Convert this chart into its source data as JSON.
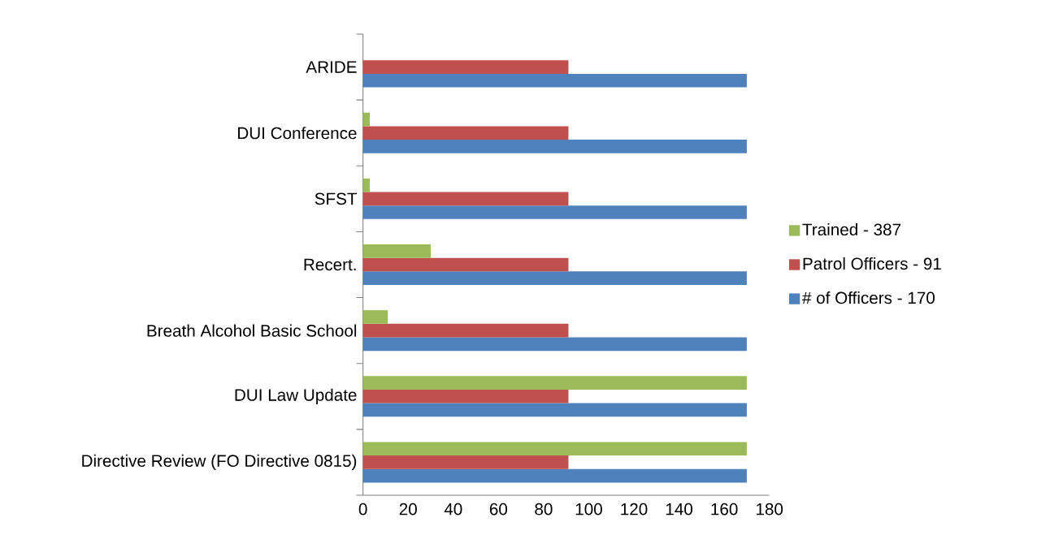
{
  "chart_data": {
    "type": "bar",
    "orientation": "horizontal",
    "categories": [
      "ARIDE",
      "DUI Conference",
      "SFST",
      "Recert.",
      "Breath Alcohol Basic School",
      "DUI Law Update",
      "Directive Review (FO Directive 0815)"
    ],
    "series": [
      {
        "name": "# of Officers - 170",
        "color": "#4f81bd",
        "values": [
          170,
          170,
          170,
          170,
          170,
          170,
          170
        ]
      },
      {
        "name": "Patrol Officers - 91",
        "color": "#c0504d",
        "values": [
          91,
          91,
          91,
          91,
          91,
          91,
          91
        ]
      },
      {
        "name": "Trained - 387",
        "color": "#9bbb59",
        "values": [
          0,
          3,
          3,
          30,
          11,
          170,
          170
        ]
      }
    ],
    "xlim": [
      0,
      180
    ],
    "xticks": [
      0,
      20,
      40,
      60,
      80,
      100,
      120,
      140,
      160,
      180
    ],
    "legend": "right"
  }
}
